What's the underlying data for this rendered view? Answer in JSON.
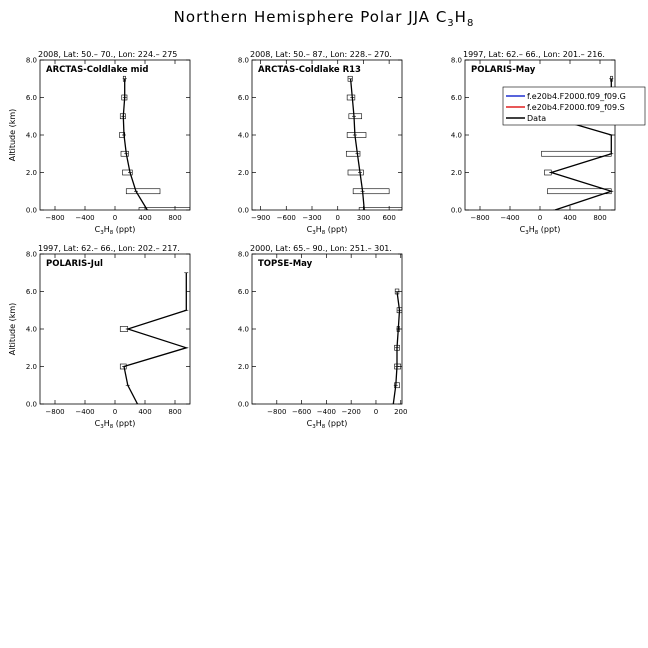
{
  "figure": {
    "title_main": "Northern Hemisphere Polar JJA C",
    "title_sub_3": "3",
    "title_mid": "H",
    "title_sub_8": "8"
  },
  "chart_data": [
    {
      "type": "line",
      "subtitle": "2008, Lat:  50.– 70., Lon: 224.– 275",
      "label": "ARCTAS-Coldlake mid",
      "xlabel": "C3H8 (ppt)",
      "ylabel": "Altitude (km)",
      "xlim": [
        -1000,
        1000
      ],
      "ylim": [
        0,
        8
      ],
      "xticks": [
        -800,
        -400,
        0,
        400,
        800
      ],
      "yticks": [
        0,
        2,
        4,
        6,
        8
      ],
      "series": [
        {
          "name": "Data",
          "x": [
            430,
            280,
            200,
            150,
            120,
            110,
            130,
            130
          ],
          "y": [
            0.0,
            1.0,
            2.0,
            3.0,
            4.0,
            5.0,
            6.0,
            7.0
          ]
        }
      ],
      "boxes": [
        {
          "y": 0.0,
          "x1": 320,
          "x2": 1000
        },
        {
          "y": 1.0,
          "x1": 150,
          "x2": 600
        },
        {
          "y": 2.0,
          "x1": 100,
          "x2": 230
        },
        {
          "y": 3.0,
          "x1": 80,
          "x2": 180
        },
        {
          "y": 4.0,
          "x1": 60,
          "x2": 130
        },
        {
          "y": 5.0,
          "x1": 70,
          "x2": 140
        },
        {
          "y": 6.0,
          "x1": 90,
          "x2": 160
        },
        {
          "y": 7.0,
          "x1": 110,
          "x2": 140
        }
      ]
    },
    {
      "type": "line",
      "subtitle": "2008, Lat:  50.– 87., Lon: 228.– 270.",
      "label": "ARCTAS-Coldlake R13",
      "xlabel": "C3H8 (ppt)",
      "ylabel": "",
      "xlim": [
        -1000,
        750
      ],
      "ylim": [
        0,
        8
      ],
      "xticks": [
        -900,
        -600,
        -300,
        0,
        300,
        600
      ],
      "yticks": [
        0,
        2,
        4,
        6,
        8
      ],
      "series": [
        {
          "name": "Data",
          "x": [
            310,
            290,
            260,
            230,
            200,
            190,
            170,
            150
          ],
          "y": [
            0.0,
            1.0,
            2.0,
            3.0,
            4.0,
            5.0,
            6.0,
            7.0
          ]
        }
      ],
      "boxes": [
        {
          "y": 0.0,
          "x1": 250,
          "x2": 750
        },
        {
          "y": 1.0,
          "x1": 180,
          "x2": 600
        },
        {
          "y": 2.0,
          "x1": 120,
          "x2": 300
        },
        {
          "y": 3.0,
          "x1": 100,
          "x2": 260
        },
        {
          "y": 4.0,
          "x1": 110,
          "x2": 330
        },
        {
          "y": 5.0,
          "x1": 130,
          "x2": 280
        },
        {
          "y": 6.0,
          "x1": 110,
          "x2": 200
        },
        {
          "y": 7.0,
          "x1": 120,
          "x2": 170
        }
      ]
    },
    {
      "type": "line",
      "subtitle": "1997, Lat:  62.– 66., Lon: 201.– 216.",
      "label": "POLARIS-May",
      "xlabel": "C3H8 (ppt)",
      "ylabel": "",
      "xlim": [
        -1000,
        1000
      ],
      "ylim": [
        0,
        8
      ],
      "xticks": [
        -800,
        -400,
        0,
        400,
        800
      ],
      "yticks": [
        0,
        2,
        4,
        6,
        8
      ],
      "legend": {
        "placement": "top-right",
        "entries": [
          {
            "label": "f.e20b4.F2000.f09_f09.G",
            "color": "#2030d0"
          },
          {
            "label": "f.e20b4.F2000.f09_f09.S",
            "color": "#e02020"
          },
          {
            "label": "Data",
            "color": "#000000"
          }
        ]
      },
      "series": [
        {
          "name": "Data",
          "x": [
            200,
            950,
            150,
            950,
            950,
            100,
            950,
            950
          ],
          "y": [
            0.0,
            1.0,
            2.0,
            3.0,
            4.0,
            5.0,
            6.0,
            7.0
          ]
        }
      ],
      "boxes": [
        {
          "y": 1.0,
          "x1": 100,
          "x2": 950
        },
        {
          "y": 2.0,
          "x1": 60,
          "x2": 150
        },
        {
          "y": 3.0,
          "x1": 20,
          "x2": 950
        },
        {
          "y": 6.0,
          "x1": 940,
          "x2": 960
        },
        {
          "y": 7.0,
          "x1": 940,
          "x2": 960
        }
      ]
    },
    {
      "type": "line",
      "subtitle": "1997, Lat:  62.– 66., Lon: 202.– 217.",
      "label": "POLARIS-Jul",
      "xlabel": "C3H8 (ppt)",
      "ylabel": "Altitude (km)",
      "xlim": [
        -1000,
        1000
      ],
      "ylim": [
        0,
        8
      ],
      "xticks": [
        -800,
        -400,
        0,
        400,
        800
      ],
      "yticks": [
        0,
        2,
        4,
        6,
        8
      ],
      "series": [
        {
          "name": "Data",
          "x": [
            300,
            170,
            120,
            950,
            170,
            950,
            950
          ],
          "y": [
            0.0,
            1.0,
            2.0,
            3.0,
            4.0,
            5.0,
            7.0
          ]
        }
      ],
      "boxes": [
        {
          "y": 2.0,
          "x1": 70,
          "x2": 150
        },
        {
          "y": 4.0,
          "x1": 70,
          "x2": 170
        }
      ]
    },
    {
      "type": "line",
      "subtitle": "2000, Lat:  65.– 90., Lon: 251.– 301.",
      "label": "TOPSE-May",
      "xlabel": "C3H8 (ppt)",
      "ylabel": "",
      "xlim": [
        -1000,
        210
      ],
      "ylim": [
        0,
        8
      ],
      "xticks": [
        -800,
        -600,
        -400,
        -200,
        0,
        200
      ],
      "yticks": [
        0,
        2,
        4,
        6,
        8
      ],
      "series": [
        {
          "name": "Data",
          "x": [
            140,
            160,
            170,
            170,
            180,
            190,
            170
          ],
          "y": [
            0.0,
            1.0,
            2.0,
            3.0,
            4.0,
            5.0,
            6.0
          ]
        }
      ],
      "boxes": [
        {
          "y": 1.0,
          "x1": 150,
          "x2": 190
        },
        {
          "y": 2.0,
          "x1": 150,
          "x2": 200
        },
        {
          "y": 3.0,
          "x1": 150,
          "x2": 190
        },
        {
          "y": 4.0,
          "x1": 170,
          "x2": 190
        },
        {
          "y": 5.0,
          "x1": 170,
          "x2": 210
        },
        {
          "y": 6.0,
          "x1": 155,
          "x2": 185
        }
      ]
    }
  ]
}
